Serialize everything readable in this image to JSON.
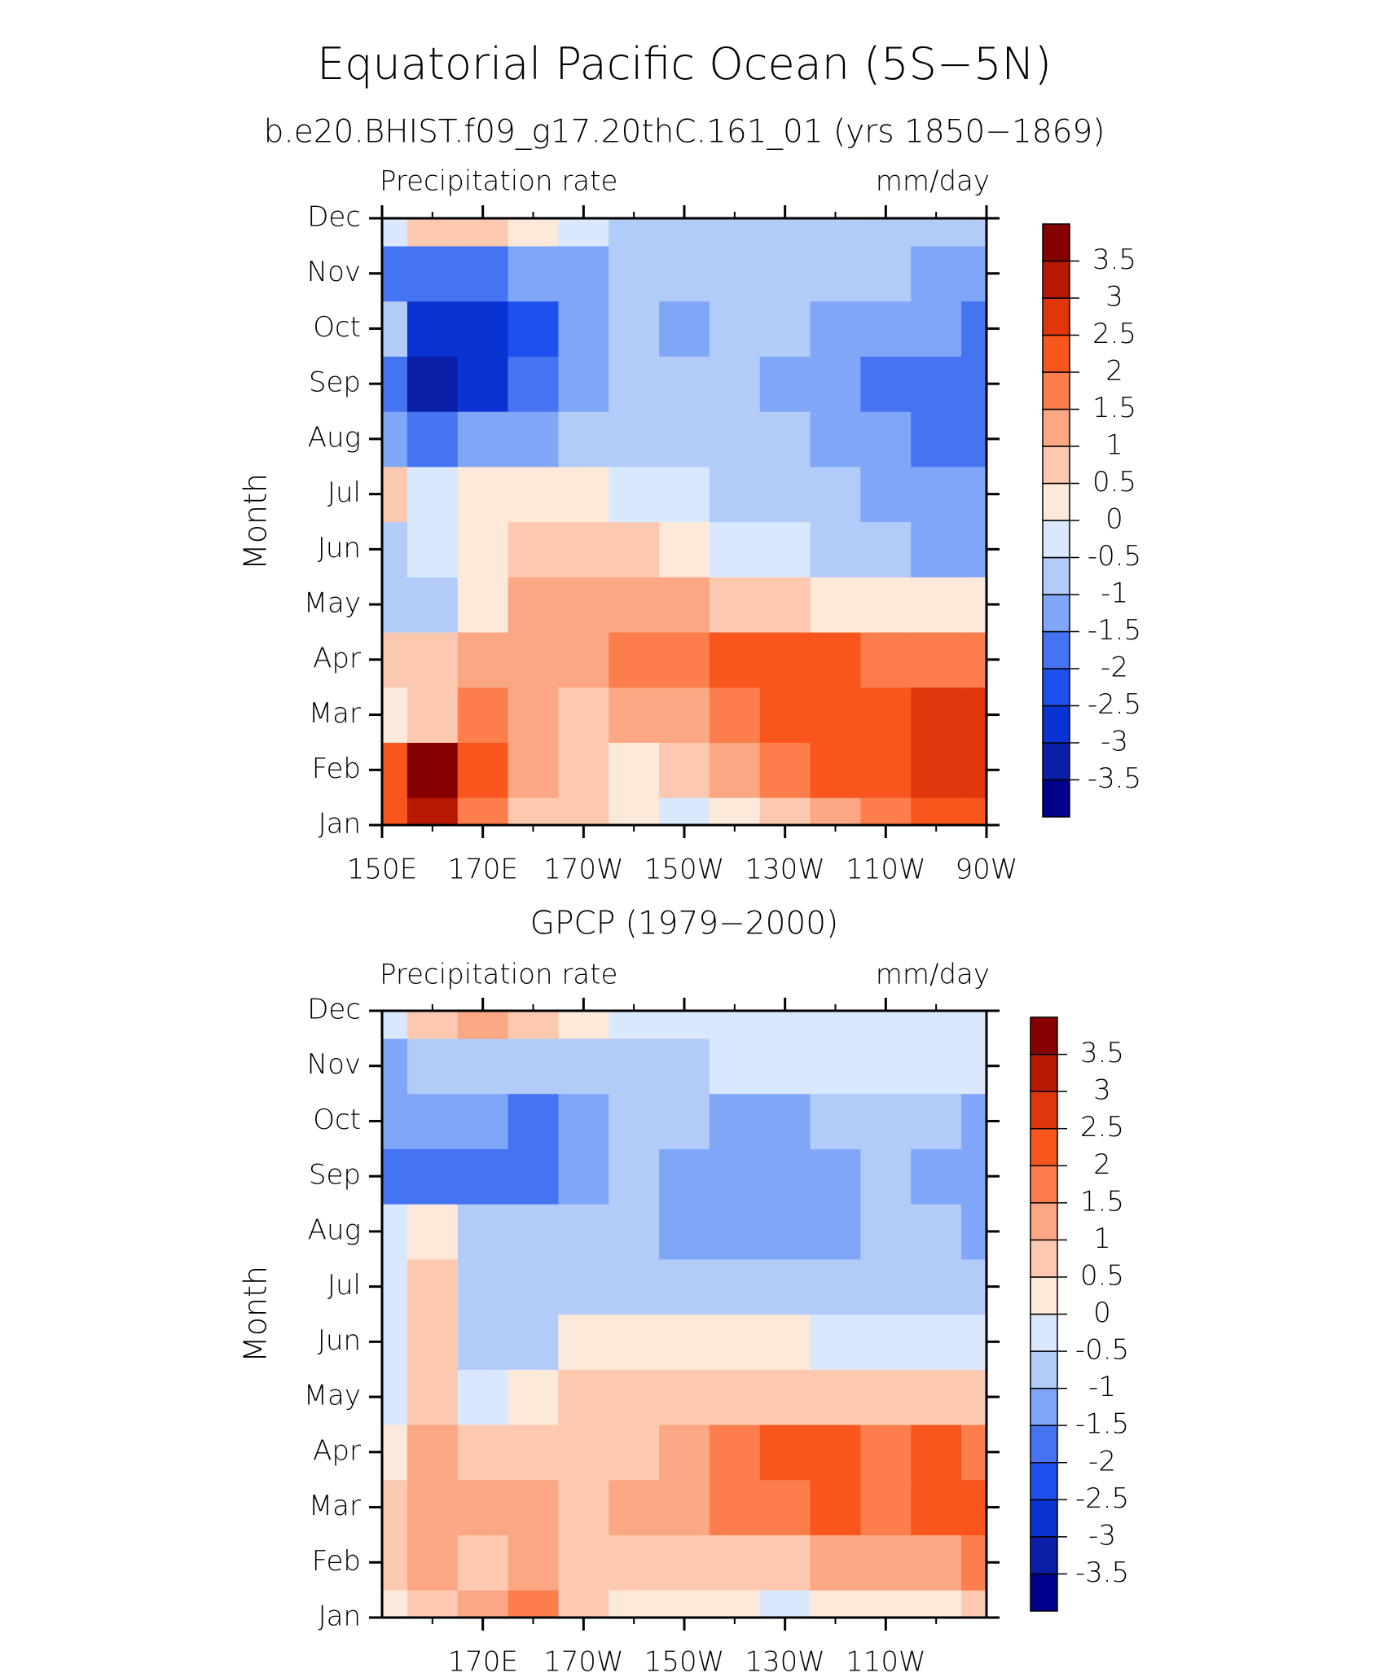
{
  "title": "Equatorial Pacific Ocean (5S−5N)",
  "chart_data": [
    {
      "type": "contour",
      "subtitle": "b.e20.BHIST.f09_g17.20thC.161_01 (yrs 1850−1869)",
      "left_label": "Precipitation rate",
      "right_label": "mm/day",
      "y_label": "Month",
      "categories": [
        "Jan",
        "Feb",
        "Mar",
        "Apr",
        "May",
        "Jun",
        "Jul",
        "Aug",
        "Sep",
        "Oct",
        "Nov",
        "Dec"
      ],
      "x": [
        150,
        160,
        170,
        180,
        190,
        200,
        210,
        220,
        230,
        240,
        250,
        260,
        270
      ],
      "xlim": [
        150,
        270
      ],
      "xticks": [
        {
          "value": 150,
          "label": "150E"
        },
        {
          "value": 170,
          "label": "170E"
        },
        {
          "value": 190,
          "label": "170W"
        },
        {
          "value": 210,
          "label": "150W"
        },
        {
          "value": 230,
          "label": "130W"
        },
        {
          "value": 250,
          "label": "110W"
        },
        {
          "value": 270,
          "label": "90W"
        }
      ],
      "minor_xticks": [
        160,
        180,
        200,
        220,
        240,
        260
      ],
      "levels": [
        -3.5,
        -3,
        -2.5,
        -2,
        -1.5,
        -1,
        -0.5,
        0,
        0.5,
        1,
        1.5,
        2,
        2.5,
        3,
        3.5
      ],
      "colors": [
        "#00008c",
        "#0a1ea8",
        "#0a34d2",
        "#1e50f0",
        "#4474f2",
        "#80a6f8",
        "#b2cbf9",
        "#d9e8fc",
        "#fde9da",
        "#fcc9b0",
        "#fba784",
        "#fb7e4c",
        "#f9561e",
        "#df360c",
        "#b61800",
        "#870000"
      ],
      "z": [
        [
          2.2,
          3.0,
          1.8,
          0.8,
          0.6,
          0.3,
          -0.2,
          0.2,
          0.8,
          1.2,
          1.8,
          2.0,
          2.2
        ],
        [
          2.3,
          3.7,
          2.2,
          1.2,
          0.6,
          0.4,
          0.6,
          1.0,
          1.5,
          2.0,
          2.3,
          2.6,
          2.7
        ],
        [
          0.3,
          0.6,
          1.5,
          1.3,
          0.8,
          1.0,
          1.4,
          1.7,
          2.0,
          2.3,
          2.3,
          2.6,
          2.8
        ],
        [
          0.7,
          0.9,
          1.3,
          1.2,
          1.4,
          1.5,
          1.8,
          2.0,
          2.0,
          2.0,
          1.8,
          1.7,
          1.8
        ],
        [
          -0.8,
          -0.6,
          0.3,
          1.0,
          1.3,
          1.2,
          1.0,
          0.8,
          0.6,
          0.4,
          0.3,
          0.2,
          0.3
        ],
        [
          -0.8,
          -0.4,
          0.3,
          0.7,
          0.8,
          0.6,
          0.3,
          -0.2,
          -0.5,
          -0.8,
          -0.9,
          -1.1,
          -1.2
        ],
        [
          0.7,
          -0.2,
          0.1,
          0.2,
          0.2,
          -0.1,
          -0.4,
          -0.6,
          -0.8,
          -1.0,
          -1.1,
          -1.2,
          -1.3
        ],
        [
          -1.3,
          -1.8,
          -1.5,
          -1.1,
          -0.8,
          -0.7,
          -0.7,
          -0.8,
          -1.0,
          -1.2,
          -1.5,
          -1.6,
          -2.0
        ],
        [
          -2.0,
          -3.2,
          -2.6,
          -2.0,
          -1.3,
          -0.9,
          -0.8,
          -0.8,
          -1.1,
          -1.4,
          -1.6,
          -1.6,
          -1.7
        ],
        [
          -0.6,
          -2.6,
          -2.6,
          -2.1,
          -1.5,
          -1.0,
          -1.1,
          -0.9,
          -0.9,
          -1.1,
          -1.4,
          -1.5,
          -1.6
        ],
        [
          -2.0,
          -1.6,
          -1.6,
          -1.5,
          -1.2,
          -0.9,
          -0.8,
          -0.7,
          -0.7,
          -0.8,
          -1.0,
          -1.2,
          -1.3
        ],
        [
          -0.2,
          0.6,
          0.8,
          0.3,
          -0.2,
          -0.6,
          -0.6,
          -0.6,
          -0.6,
          -0.6,
          -0.6,
          -0.6,
          -0.6
        ]
      ]
    },
    {
      "type": "contour",
      "subtitle": "GPCP (1979−2000)",
      "left_label": "Precipitation rate",
      "right_label": "mm/day",
      "y_label": "Month",
      "categories": [
        "Jan",
        "Feb",
        "Mar",
        "Apr",
        "May",
        "Jun",
        "Jul",
        "Aug",
        "Sep",
        "Oct",
        "Nov",
        "Dec"
      ],
      "x": [
        150,
        160,
        170,
        180,
        190,
        200,
        210,
        220,
        230,
        240,
        250,
        260,
        270
      ],
      "xlim": [
        150,
        270
      ],
      "xticks": [
        {
          "value": 170,
          "label": "170E"
        },
        {
          "value": 190,
          "label": "170W"
        },
        {
          "value": 210,
          "label": "150W"
        },
        {
          "value": 230,
          "label": "130W"
        },
        {
          "value": 250,
          "label": "110W"
        }
      ],
      "minor_xticks": [
        160,
        180,
        200,
        220,
        240,
        260
      ],
      "levels": [
        -3.5,
        -3,
        -2.5,
        -2,
        -1.5,
        -1,
        -0.5,
        0,
        0.5,
        1,
        1.5,
        2,
        2.5,
        3,
        3.5
      ],
      "colors": [
        "#00008c",
        "#0a1ea8",
        "#0a34d2",
        "#1e50f0",
        "#4474f2",
        "#80a6f8",
        "#b2cbf9",
        "#d9e8fc",
        "#fde9da",
        "#fcc9b0",
        "#fba784",
        "#fb7e4c",
        "#f9561e",
        "#df360c",
        "#b61800",
        "#870000"
      ],
      "z": [
        [
          0.2,
          0.8,
          1.3,
          1.8,
          0.7,
          0.3,
          0.1,
          0.1,
          -0.1,
          0.0,
          0.2,
          0.4,
          0.6
        ],
        [
          0.8,
          1.2,
          0.8,
          1.3,
          0.8,
          0.6,
          0.8,
          0.8,
          0.8,
          1.0,
          1.2,
          1.4,
          1.6
        ],
        [
          0.8,
          1.2,
          1.3,
          1.4,
          0.6,
          1.0,
          1.3,
          1.5,
          1.8,
          2.0,
          1.8,
          2.1,
          2.0
        ],
        [
          0.4,
          1.2,
          0.8,
          0.5,
          0.8,
          0.8,
          1.4,
          1.8,
          2.0,
          2.1,
          1.8,
          2.0,
          1.8
        ],
        [
          -0.2,
          0.6,
          -0.3,
          0.1,
          0.8,
          0.8,
          0.8,
          0.8,
          0.8,
          0.8,
          0.6,
          0.5,
          0.5
        ],
        [
          -0.3,
          0.7,
          -0.6,
          -0.6,
          0.3,
          0.4,
          0.3,
          0.2,
          0.1,
          -0.1,
          -0.2,
          -0.3,
          -0.4
        ],
        [
          -0.4,
          0.6,
          -0.7,
          -0.8,
          -0.6,
          -0.6,
          -0.6,
          -0.6,
          -0.6,
          -0.7,
          -0.8,
          -0.9,
          -1.0
        ],
        [
          -0.5,
          0.3,
          -0.9,
          -0.9,
          -0.9,
          -0.9,
          -1.1,
          -1.3,
          -1.2,
          -1.1,
          -0.9,
          -1.0,
          -1.2
        ],
        [
          -1.6,
          -1.6,
          -1.7,
          -1.6,
          -1.2,
          -1.0,
          -1.1,
          -1.2,
          -1.3,
          -1.3,
          -0.9,
          -1.1,
          -1.3
        ],
        [
          -1.3,
          -1.2,
          -1.4,
          -1.7,
          -1.2,
          -0.9,
          -1.0,
          -1.2,
          -1.2,
          -1.0,
          -0.8,
          -1.0,
          -1.3
        ],
        [
          -1.2,
          -1.0,
          -0.8,
          -0.7,
          -0.7,
          -0.8,
          -0.6,
          -0.5,
          -0.4,
          -0.4,
          -0.4,
          -0.4,
          -0.5
        ],
        [
          -0.3,
          0.6,
          1.2,
          0.9,
          0.3,
          -0.2,
          -0.4,
          -0.3,
          -0.1,
          -0.2,
          -0.3,
          -0.3,
          -0.3
        ]
      ]
    }
  ]
}
